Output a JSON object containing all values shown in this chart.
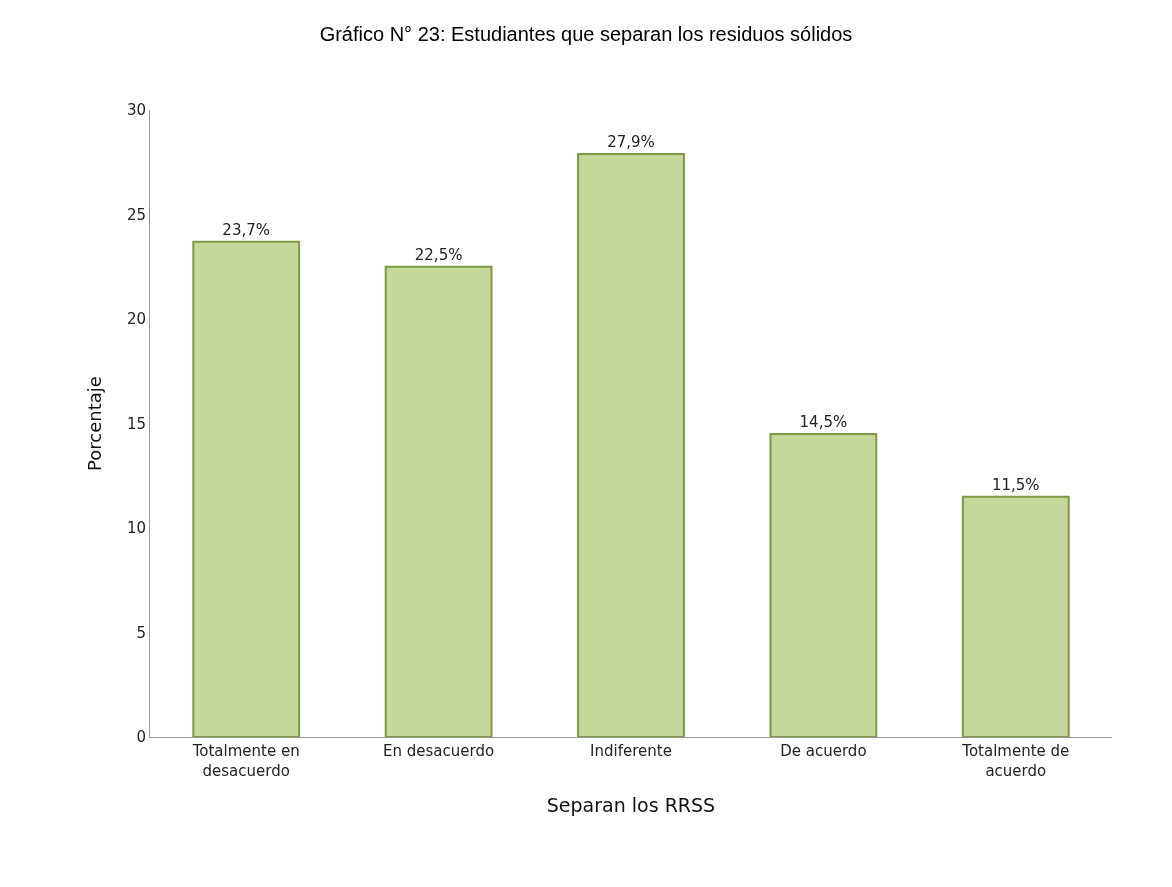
{
  "chart_data": {
    "type": "bar",
    "title": "Gráfico N° 23: Estudiantes que separan los residuos sólidos",
    "categories": [
      "Totalmente en desacuerdo",
      "En desacuerdo",
      "Indiferente",
      "De acuerdo",
      "Totalmente de acuerdo"
    ],
    "values": [
      23.7,
      22.5,
      27.9,
      14.5,
      11.5
    ],
    "value_labels": [
      "23,7%",
      "22,5%",
      "27,9%",
      "14,5%",
      "11,5%"
    ],
    "color": "#c4d89a",
    "xlabel": "Separan los RRSS",
    "ylabel": "Porcentaje",
    "ylim": [
      0,
      30
    ],
    "yticks": [
      0,
      5,
      10,
      15,
      20,
      25,
      30
    ],
    "grid": false
  }
}
